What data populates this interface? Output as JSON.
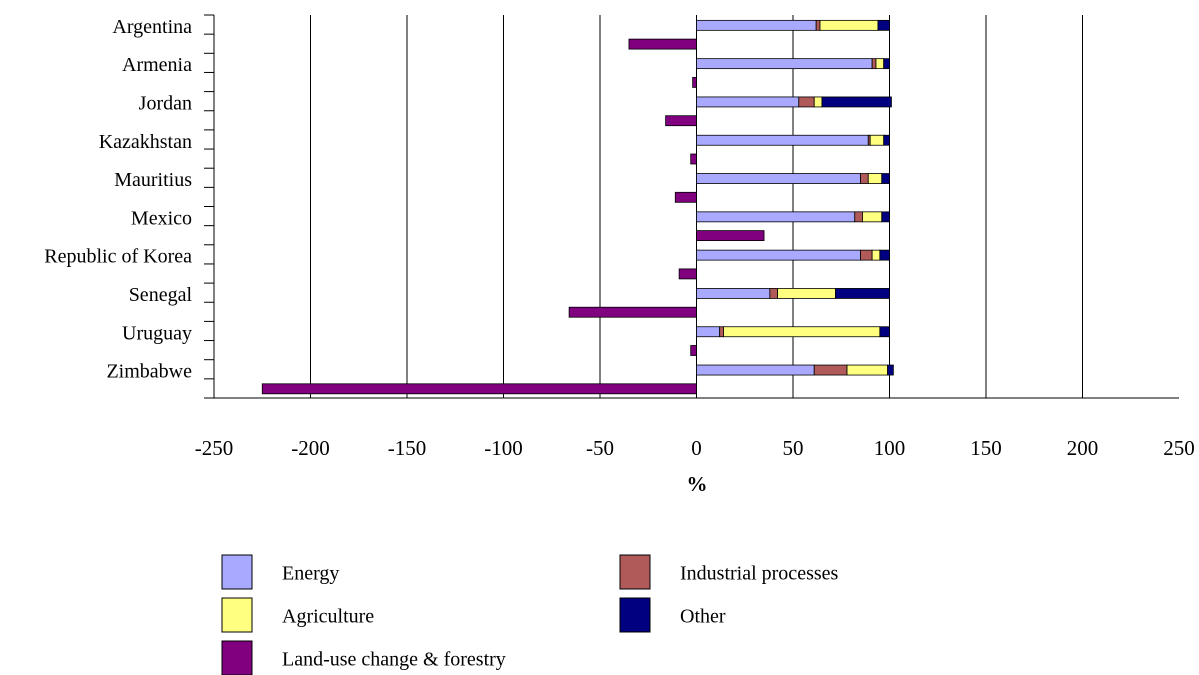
{
  "chart_data": {
    "type": "bar",
    "orientation": "horizontal",
    "categories": [
      "Argentina",
      "Armenia",
      "Jordan",
      "Kazakhstan",
      "Mauritius",
      "Mexico",
      "Republic of Korea",
      "Senegal",
      "Uruguay",
      "Zimbabwe"
    ],
    "series": [
      {
        "name": "Energy",
        "color": "#a9a9ff",
        "values": [
          62,
          91,
          53,
          89,
          85,
          82,
          85,
          38,
          12,
          61
        ]
      },
      {
        "name": "Industrial processes",
        "color": "#b05a5a",
        "values": [
          2,
          2,
          8,
          1,
          4,
          4,
          6,
          4,
          2,
          17
        ]
      },
      {
        "name": "Agriculture",
        "color": "#ffff80",
        "values": [
          30,
          4,
          4,
          7,
          7,
          10,
          4,
          30,
          81,
          21
        ]
      },
      {
        "name": "Other",
        "color": "#000080",
        "values": [
          6,
          3,
          36,
          3,
          4,
          4,
          5,
          28,
          5,
          3
        ]
      },
      {
        "name": "Land-use change & forestry",
        "color": "#800080",
        "values": [
          -35,
          -2,
          -16,
          -3,
          -11,
          35,
          -9,
          -66,
          -3,
          -225
        ]
      }
    ],
    "xlabel": "%",
    "xlim": [
      -250,
      250
    ],
    "xticks": [
      -250,
      -200,
      -150,
      -100,
      -50,
      0,
      50,
      100,
      150,
      200,
      250
    ],
    "grid": true
  }
}
